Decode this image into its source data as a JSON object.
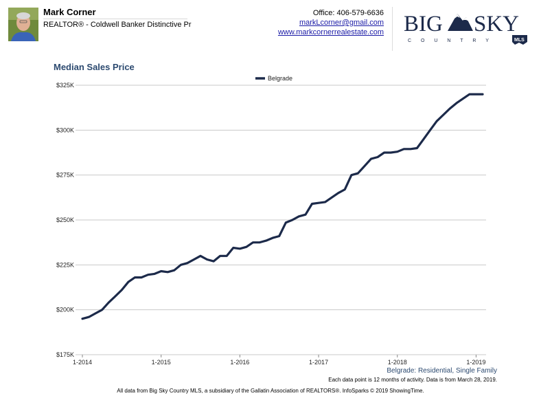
{
  "header": {
    "agent_name": "Mark Corner",
    "agent_title": "REALTOR® - Coldwell Banker Distinctive Pr",
    "office_phone": "Office: 406-579-6636",
    "email": "markLcorner@gmail.com",
    "website": "www.markcornerrealestate.com",
    "logo_text": "BIG SKY",
    "logo_sub": "C O U N T R Y",
    "logo_badge": "MLS"
  },
  "chart_data": {
    "type": "line",
    "title": "Median Sales Price",
    "legend_position": "top-center",
    "grid": true,
    "series": [
      {
        "name": "Belgrade",
        "color": "#1c2a4a",
        "points": [
          [
            0,
            195000
          ],
          [
            1,
            196000
          ],
          [
            2,
            198000
          ],
          [
            3,
            200000
          ],
          [
            4,
            204000
          ],
          [
            5,
            207500
          ],
          [
            6,
            211000
          ],
          [
            7,
            215500
          ],
          [
            8,
            218000
          ],
          [
            9,
            218000
          ],
          [
            10,
            219500
          ],
          [
            11,
            220000
          ],
          [
            12,
            221500
          ],
          [
            13,
            221000
          ],
          [
            14,
            222000
          ],
          [
            15,
            225000
          ],
          [
            16,
            226000
          ],
          [
            17,
            228000
          ],
          [
            18,
            230000
          ],
          [
            19,
            228000
          ],
          [
            20,
            227000
          ],
          [
            21,
            230000
          ],
          [
            22,
            230000
          ],
          [
            23,
            234500
          ],
          [
            24,
            234000
          ],
          [
            25,
            235000
          ],
          [
            26,
            237500
          ],
          [
            27,
            237500
          ],
          [
            28,
            238500
          ],
          [
            29,
            240000
          ],
          [
            30,
            241000
          ],
          [
            31,
            248500
          ],
          [
            32,
            250000
          ],
          [
            33,
            252000
          ],
          [
            34,
            253000
          ],
          [
            35,
            259000
          ],
          [
            36,
            259500
          ],
          [
            37,
            260000
          ],
          [
            38,
            262500
          ],
          [
            39,
            265000
          ],
          [
            40,
            267000
          ],
          [
            41,
            275000
          ],
          [
            42,
            276000
          ],
          [
            43,
            280000
          ],
          [
            44,
            284000
          ],
          [
            45,
            285000
          ],
          [
            46,
            287500
          ],
          [
            47,
            287500
          ],
          [
            48,
            288000
          ],
          [
            49,
            289500
          ],
          [
            50,
            289500
          ],
          [
            51,
            290000
          ],
          [
            52,
            295000
          ],
          [
            53,
            300000
          ],
          [
            54,
            305000
          ],
          [
            55,
            308500
          ],
          [
            56,
            312000
          ],
          [
            57,
            315000
          ],
          [
            58,
            317500
          ],
          [
            59,
            320000
          ],
          [
            60,
            320000
          ],
          [
            61,
            320000
          ]
        ]
      }
    ],
    "x_ticks": [
      {
        "month_index": 0,
        "label": "1-2014"
      },
      {
        "month_index": 12,
        "label": "1-2015"
      },
      {
        "month_index": 24,
        "label": "1-2016"
      },
      {
        "month_index": 36,
        "label": "1-2017"
      },
      {
        "month_index": 48,
        "label": "1-2018"
      },
      {
        "month_index": 60,
        "label": "1-2019"
      }
    ],
    "xlim": [
      0,
      61
    ],
    "ylim": [
      175000,
      325000
    ],
    "y_ticks": [
      {
        "value": 325000,
        "label": "$325K"
      },
      {
        "value": 300000,
        "label": "$300K"
      },
      {
        "value": 275000,
        "label": "$275K"
      },
      {
        "value": 250000,
        "label": "$250K"
      },
      {
        "value": 225000,
        "label": "$225K"
      },
      {
        "value": 200000,
        "label": "$200K"
      },
      {
        "value": 175000,
        "label": "$175K"
      }
    ]
  },
  "footer": {
    "subset": "Belgrade: Residential, Single Family",
    "note": "Each data point is 12 months of activity. Data is from March 28, 2019.",
    "source": "All data from Big Sky Country MLS, a subsidiary of the Gallatin Association of REALTORS®. InfoSparks © 2019 ShowingTime."
  },
  "colors": {
    "title": "#2c4a70",
    "line": "#1c2a4a",
    "link": "#1a1aa6"
  }
}
